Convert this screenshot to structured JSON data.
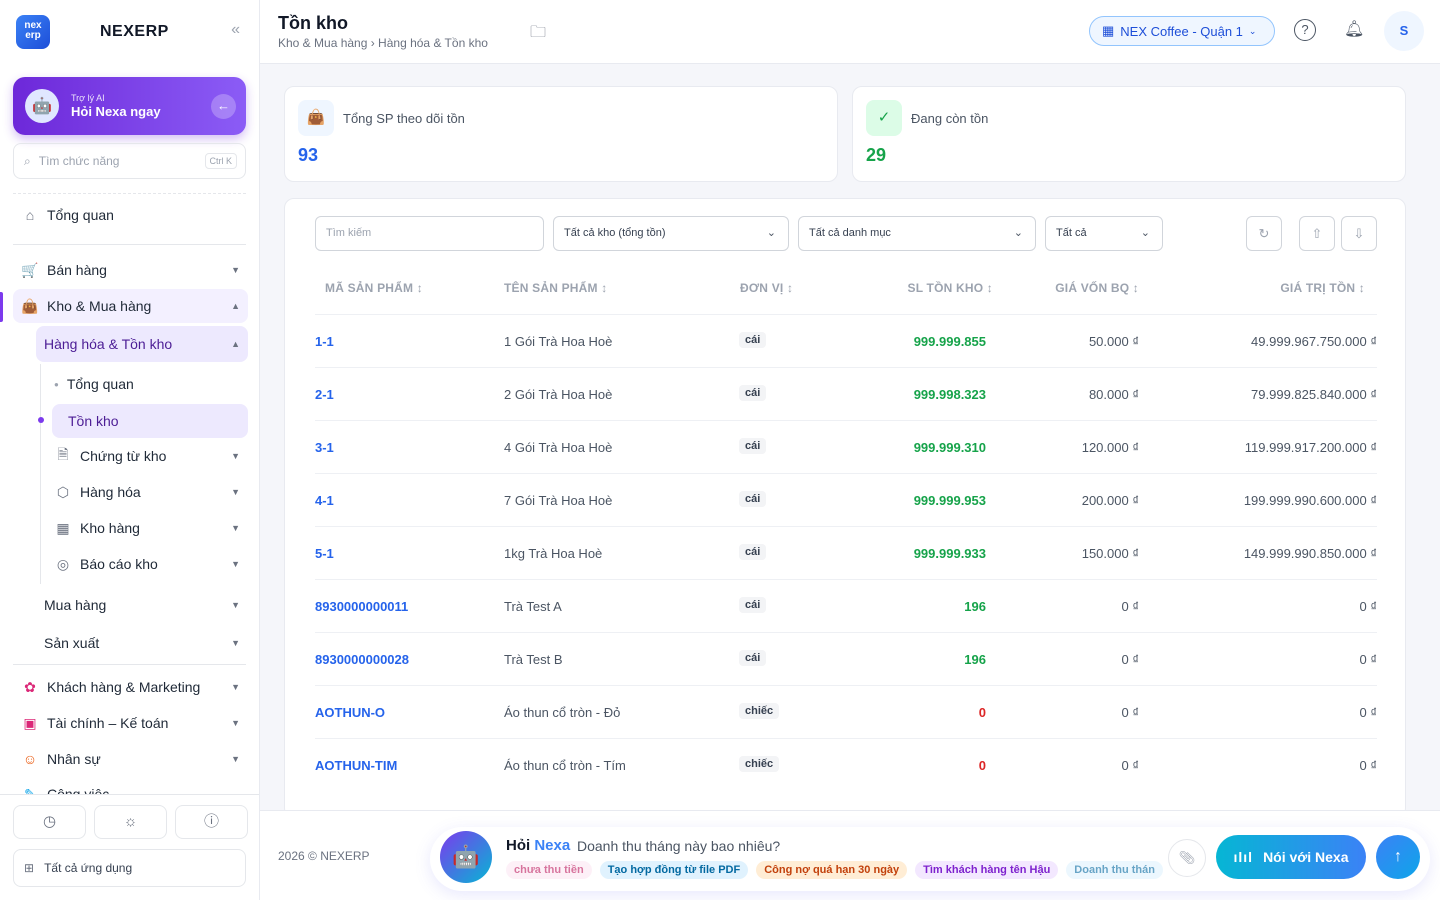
{
  "sidebar": {
    "logo_text": "nex erp",
    "brand": "NEXERP",
    "collapse_icon": "«",
    "ai": {
      "small": "Trợ lý AI",
      "big": "Hỏi Nexa ngay",
      "arrow": "←"
    },
    "search": {
      "placeholder": "Tìm chức năng",
      "shortcut": "Ctrl K"
    },
    "items": {
      "overview": "Tổng quan",
      "sales": "Bán hàng",
      "warehouse": "Kho & Mua hàng",
      "goods_inventory": "Hàng hóa & Tồn kho",
      "sub_overview": "Tổng quan",
      "stock": "Tồn kho",
      "vouchers": "Chứng từ kho",
      "goods": "Hàng hóa",
      "warehouses": "Kho hàng",
      "reports": "Báo cáo kho",
      "purchase": "Mua hàng",
      "production": "Sản xuất",
      "customers": "Khách hàng & Marketing",
      "finance": "Tài chính – Kế toán",
      "hr": "Nhân sự",
      "work": "Công việc"
    },
    "all_apps": "Tất cả ứng dụng"
  },
  "header": {
    "title": "Tồn kho",
    "breadcrumb": "Kho & Mua hàng › Hàng hóa & Tồn kho",
    "branch": "NEX Coffee - Quận 1",
    "help": "?",
    "user_initial": "S"
  },
  "stats": {
    "tracked": {
      "label": "Tổng SP theo dõi tồn",
      "value": "93"
    },
    "in_stock": {
      "label": "Đang còn tồn",
      "value": "29"
    }
  },
  "filters": {
    "search_placeholder": "Tìm kiếm",
    "warehouse": "Tất cả kho (tổng tồn)",
    "category": "Tất cả danh mục",
    "status": "Tất cả"
  },
  "table": {
    "headers": [
      "MÃ SẢN PHẨM ↕",
      "TÊN SẢN PHẨM ↕",
      "ĐƠN VỊ ↕",
      "SL TỒN KHO ↕",
      "GIÁ VỐN BQ ↕",
      "GIÁ TRỊ TỒN ↕"
    ],
    "rows": [
      {
        "code": "1-1",
        "name": "1 Gói Trà Hoa Hoè",
        "unit": "cái",
        "qty": "999.999.855",
        "cost": "50.000 ₫",
        "total": "49.999.967.750.000 ₫"
      },
      {
        "code": "2-1",
        "name": "2 Gói Trà Hoa Hoè",
        "unit": "cái",
        "qty": "999.998.323",
        "cost": "80.000 ₫",
        "total": "79.999.825.840.000 ₫"
      },
      {
        "code": "3-1",
        "name": "4 Gói Trà Hoa Hoè",
        "unit": "cái",
        "qty": "999.999.310",
        "cost": "120.000 ₫",
        "total": "119.999.917.200.000 ₫"
      },
      {
        "code": "4-1",
        "name": "7 Gói Trà Hoa Hoè",
        "unit": "cái",
        "qty": "999.999.953",
        "cost": "200.000 ₫",
        "total": "199.999.990.600.000 ₫"
      },
      {
        "code": "5-1",
        "name": "1kg Trà Hoa Hoè",
        "unit": "cái",
        "qty": "999.999.933",
        "cost": "150.000 ₫",
        "total": "149.999.990.850.000 ₫"
      },
      {
        "code": "8930000000011",
        "name": "Trà Test A",
        "unit": "cái",
        "qty": "196",
        "cost": "0 ₫",
        "total": "0 ₫"
      },
      {
        "code": "8930000000028",
        "name": "Trà Test B",
        "unit": "cái",
        "qty": "196",
        "cost": "0 ₫",
        "total": "0 ₫"
      },
      {
        "code": "AOTHUN-O",
        "name": "Áo thun cổ tròn - Đỏ",
        "unit": "chiếc",
        "qty": "0",
        "cost": "0 ₫",
        "total": "0 ₫"
      },
      {
        "code": "AOTHUN-TIM",
        "name": "Áo thun cổ tròn - Tím",
        "unit": "chiếc",
        "qty": "0",
        "cost": "0 ₫",
        "total": "0 ₫"
      }
    ]
  },
  "footer": {
    "copyright": "2026 © NEXERP",
    "ask_prefix": "Hỏi",
    "ask_name": "Nexa",
    "ask_question": "Doanh thu tháng này bao nhiêu?",
    "chips": [
      "chưa thu tiền",
      "Tạo hợp đồng từ file PDF",
      "Công nợ quá hạn 30 ngày",
      "Tìm khách hàng tên Hậu",
      "Doanh thu thán"
    ],
    "talk": "Nói với Nexa"
  },
  "colors": {
    "accent": "#7c3aed",
    "link": "#2563eb",
    "positive": "#16a34a",
    "zero": "#dc2626"
  }
}
